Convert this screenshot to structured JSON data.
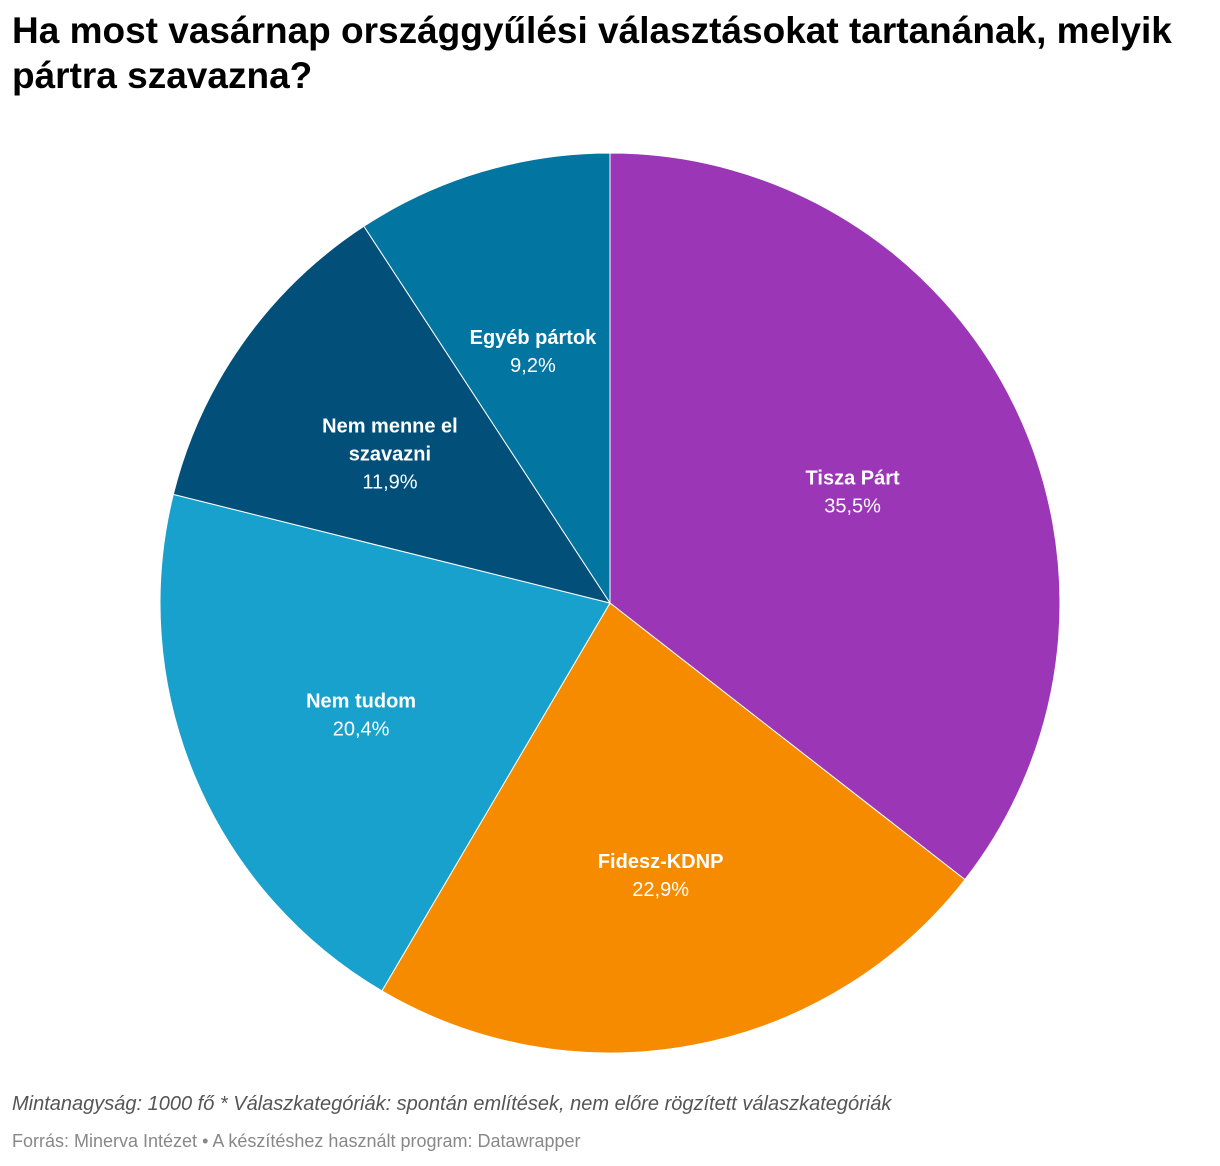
{
  "title": "Ha most vasárnap országgyűlési választásokat tartanának, melyik pártra szavazna?",
  "chart_data": {
    "type": "pie",
    "title": "Ha most vasárnap országgyűlési választásokat tartanának, melyik pártra szavazna?",
    "slices": [
      {
        "label": "Tisza Párt",
        "label_lines": [
          "Tisza Párt"
        ],
        "value": 35.5,
        "value_label": "35,5%",
        "color": "#9b36b7"
      },
      {
        "label": "Fidesz-KDNP",
        "label_lines": [
          "Fidesz-KDNP"
        ],
        "value": 22.9,
        "value_label": "22,9%",
        "color": "#f68b00"
      },
      {
        "label": "Nem tudom",
        "label_lines": [
          "Nem tudom"
        ],
        "value": 20.4,
        "value_label": "20,4%",
        "color": "#19a1cd"
      },
      {
        "label": "Nem menne el szavazni",
        "label_lines": [
          "Nem menne el",
          "szavazni"
        ],
        "value": 11.9,
        "value_label": "11,9%",
        "color": "#02507a"
      },
      {
        "label": "Egyéb pártok",
        "label_lines": [
          "Egyéb pártok"
        ],
        "value": 9.2,
        "value_label": "9,2%",
        "color": "#0276a1"
      }
    ]
  },
  "footer": {
    "note": "Mintanagyság: 1000 fő * Válaszkategóriák: spontán említések, nem előre rögzített válaszkategóriák",
    "source": "Forrás: Minerva Intézet • A készítéshez használt program: Datawrapper"
  }
}
